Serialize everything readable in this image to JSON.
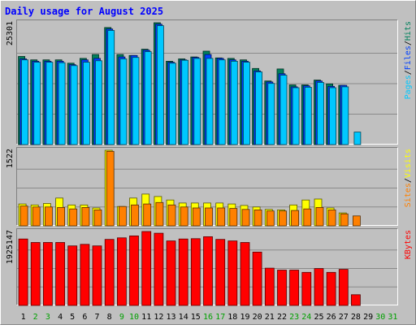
{
  "title": "Daily usage for August 2025",
  "colors": {
    "background": "#C0C0C0",
    "title": "#0000FF",
    "hits": "#00805C",
    "files": "#0040FF",
    "pages": "#00C8FF",
    "visits": "#FFFF00",
    "sites": "#FF8000",
    "kbytes": "#FF0000",
    "weekend_label": "#00A000",
    "weekday_label": "#000000",
    "grid": "#8A8A8A"
  },
  "chart_data": {
    "type": "bar",
    "days": [
      "1",
      "2",
      "3",
      "4",
      "5",
      "6",
      "7",
      "8",
      "9",
      "10",
      "11",
      "12",
      "13",
      "14",
      "15",
      "16",
      "17",
      "18",
      "19",
      "20",
      "21",
      "22",
      "23",
      "24",
      "25",
      "26",
      "27",
      "28",
      "29",
      "30",
      "31"
    ],
    "weekend_days": [
      "2",
      "3",
      "9",
      "10",
      "16",
      "17",
      "23",
      "24",
      "30",
      "31"
    ],
    "panels": [
      {
        "id": "usage",
        "max_label": "25301",
        "ymax": 25301,
        "legend": [
          {
            "text": "Pages",
            "color_key": "pages"
          },
          {
            "text": "/",
            "color_key": "weekday_label"
          },
          {
            "text": "Files",
            "color_key": "files"
          },
          {
            "text": "/",
            "color_key": "weekday_label"
          },
          {
            "text": "Hits",
            "color_key": "hits"
          }
        ],
        "series": [
          {
            "name": "Hits",
            "color_key": "hits",
            "values": [
              18300,
              17600,
              17600,
              17600,
              16900,
              17900,
              18700,
              24300,
              18700,
              18500,
              19800,
              25301,
              17300,
              17800,
              18200,
              19400,
              18000,
              17900,
              17600,
              15800,
              13200,
              15700,
              12400,
              12400,
              13400,
              12600,
              12300,
              0,
              0,
              0,
              0
            ]
          },
          {
            "name": "Files",
            "color_key": "files",
            "values": [
              17800,
              17300,
              17300,
              17300,
              16600,
              17600,
              17900,
              24000,
              18200,
              18500,
              19600,
              25000,
              17100,
              17600,
              18100,
              18700,
              17900,
              17600,
              17300,
              15300,
              13000,
              14700,
              12000,
              12200,
              13200,
              12100,
              12300,
              0,
              0,
              0,
              0
            ]
          },
          {
            "name": "Pages",
            "color_key": "pages",
            "values": [
              17600,
              17100,
              17100,
              17000,
              16400,
              17100,
              17400,
              23700,
              17800,
              18100,
              19300,
              24700,
              16900,
              17500,
              17900,
              17900,
              17600,
              17300,
              17100,
              15100,
              12700,
              14400,
              11800,
              11900,
              12900,
              11800,
              12000,
              2600,
              0,
              0,
              0
            ]
          }
        ]
      },
      {
        "id": "visitors",
        "max_label": "1522",
        "ymax": 1522,
        "legend": [
          {
            "text": "Sites",
            "color_key": "sites"
          },
          {
            "text": "/",
            "color_key": "weekday_label"
          },
          {
            "text": "Visits",
            "color_key": "visits"
          }
        ],
        "series": [
          {
            "name": "Visits",
            "color_key": "visits",
            "values": [
              440,
              420,
              450,
              560,
              420,
              420,
              360,
              1522,
              390,
              560,
              640,
              590,
              520,
              460,
              460,
              460,
              460,
              440,
              410,
              380,
              330,
              320,
              420,
              520,
              540,
              360,
              260,
              0,
              0,
              0,
              0
            ]
          },
          {
            "name": "Sites",
            "color_key": "sites",
            "values": [
              400,
              380,
              380,
              370,
              340,
              370,
              320,
              1500,
              390,
              420,
              440,
              470,
              420,
              380,
              360,
              360,
              360,
              350,
              330,
              320,
              300,
              300,
              310,
              340,
              370,
              320,
              240,
              200,
              0,
              0,
              0
            ]
          }
        ]
      },
      {
        "id": "kbytes",
        "max_label": "1925147",
        "ymax": 1925147,
        "legend": [
          {
            "text": "KBytes",
            "color_key": "kbytes"
          }
        ],
        "series": [
          {
            "name": "KBytes",
            "color_key": "kbytes",
            "values": [
              1730000,
              1640000,
              1640000,
              1640000,
              1550000,
              1590000,
              1550000,
              1720000,
              1760000,
              1810000,
              1925147,
              1880000,
              1680000,
              1730000,
              1740000,
              1790000,
              1720000,
              1680000,
              1640000,
              1390000,
              970000,
              920000,
              920000,
              860000,
              960000,
              860000,
              940000,
              280000,
              0,
              0,
              0
            ]
          }
        ]
      }
    ]
  }
}
